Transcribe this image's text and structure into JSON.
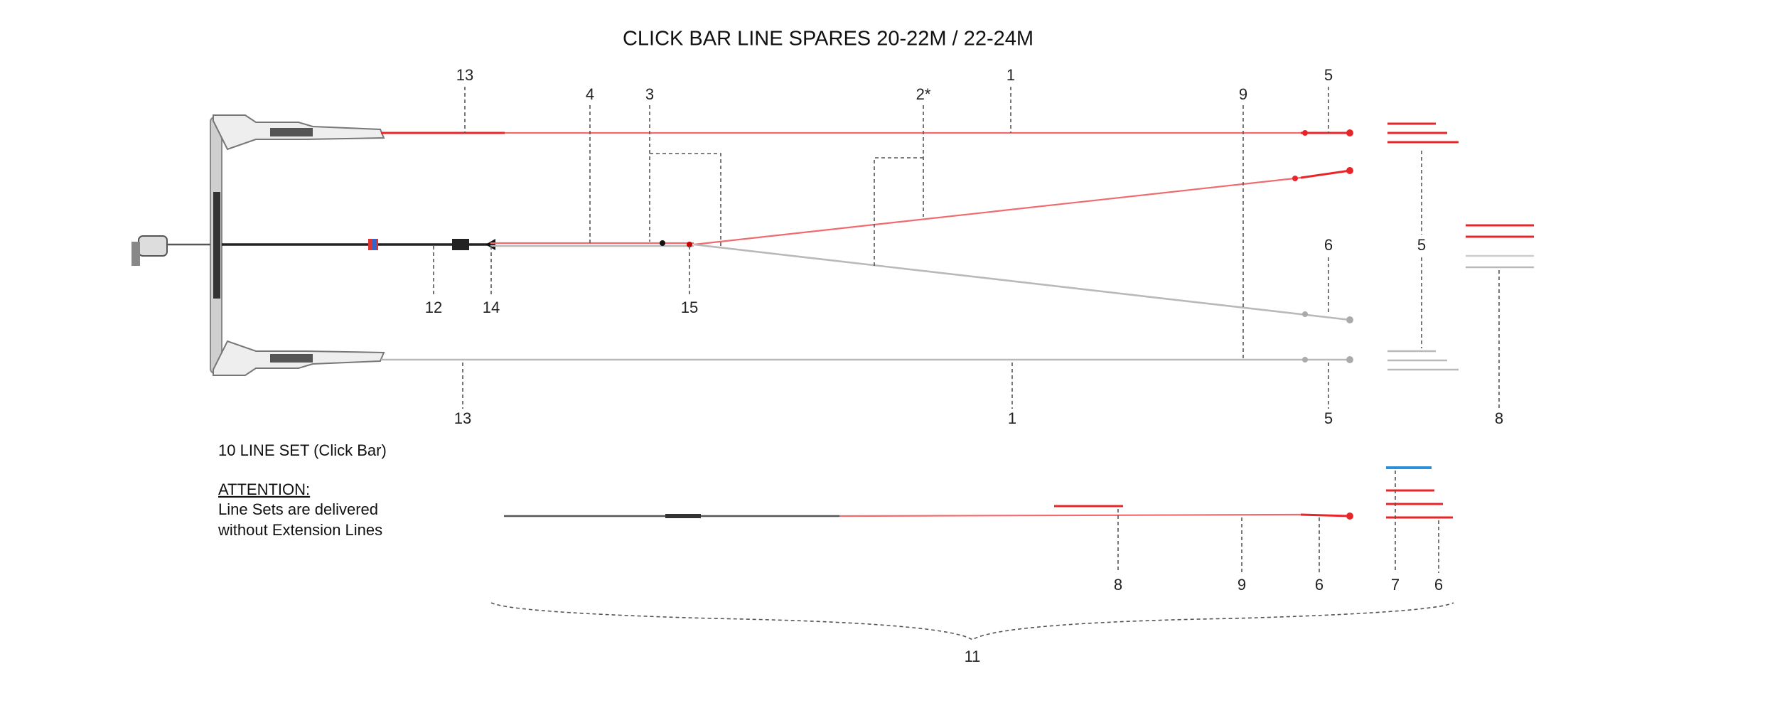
{
  "title": "CLICK BAR LINE SPARES 20-22M / 22-24M",
  "callouts": [
    {
      "label": "13"
    },
    {
      "label": "4"
    },
    {
      "label": "3"
    },
    {
      "label": "2*"
    },
    {
      "label": "1"
    },
    {
      "label": "9"
    },
    {
      "label": "5"
    },
    {
      "label": "6"
    },
    {
      "label": "5"
    },
    {
      "label": "12"
    },
    {
      "label": "14"
    },
    {
      "label": "15"
    },
    {
      "label": "13"
    },
    {
      "label": "1"
    },
    {
      "label": "5"
    },
    {
      "label": "8"
    },
    {
      "label": "8"
    },
    {
      "label": "9"
    },
    {
      "label": "6"
    },
    {
      "label": "7"
    },
    {
      "label": "6"
    },
    {
      "label": "11"
    }
  ],
  "notes": {
    "line_set": "10  LINE SET (Click Bar)",
    "attention": "ATTENTION:",
    "attention_text": [
      "Line Sets are delivered",
      "without Extension Lines"
    ]
  }
}
